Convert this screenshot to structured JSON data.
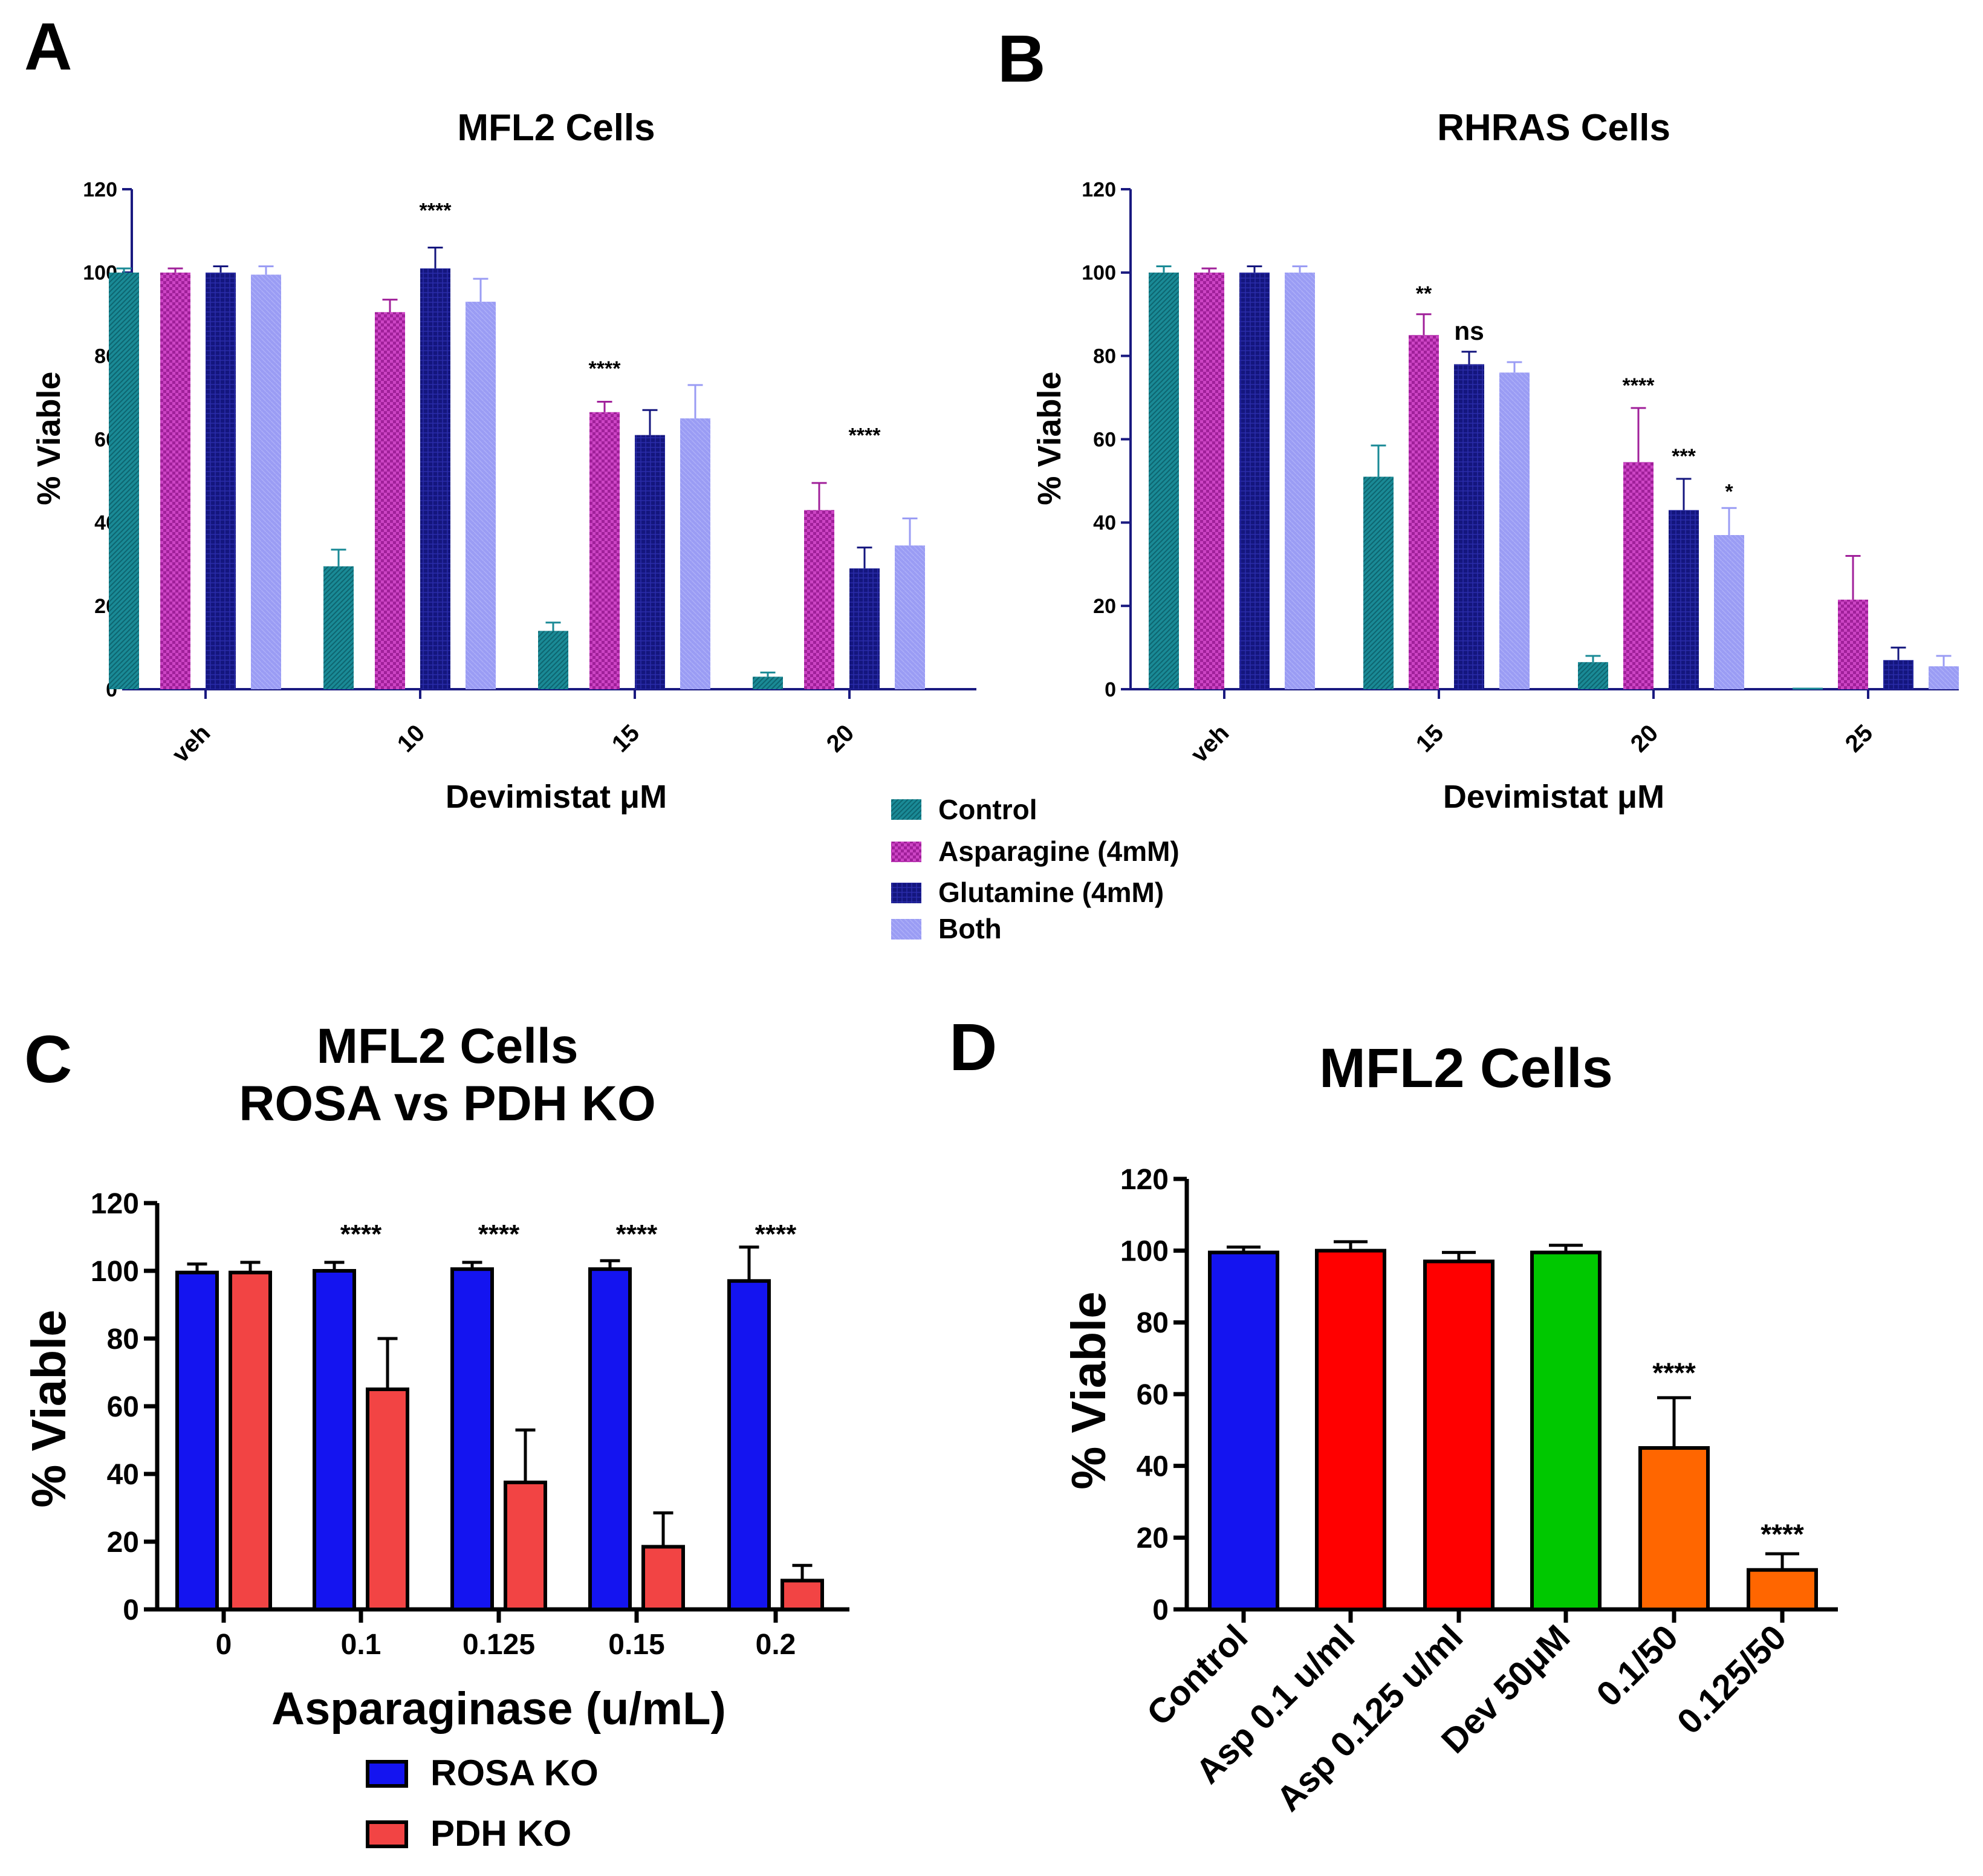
{
  "figure": {
    "panel_letters": [
      "A",
      "B",
      "C",
      "D"
    ],
    "legend_ab": [
      {
        "label": "Control",
        "color": "#1a8a96",
        "pattern": "hatch-teal"
      },
      {
        "label": "Asparagine (4mM)",
        "color": "#a0209a",
        "pattern": "check-magenta"
      },
      {
        "label": "Glutamine (4mM)",
        "color": "#14167e",
        "pattern": "grid-navy"
      },
      {
        "label": "Both",
        "color": "#9a9cf4",
        "pattern": "solid-lavender"
      }
    ],
    "legend_c": [
      {
        "label": "ROSA KO",
        "color": "#1414f0"
      },
      {
        "label": "PDH KO",
        "color": "#f24444"
      }
    ]
  },
  "chart_data": [
    {
      "panel": "A",
      "type": "bar",
      "title": "MFL2 Cells",
      "xlabel": "Devimistat μM",
      "ylabel": "% Viable",
      "ylim": [
        0,
        120
      ],
      "yticks": [
        "0",
        "20",
        "40",
        "60",
        "80",
        "100",
        "120"
      ],
      "categories": [
        "veh",
        "10",
        "15",
        "20"
      ],
      "series": [
        {
          "name": "Control",
          "values": [
            100,
            29.5,
            14,
            3
          ],
          "errors": [
            1,
            4,
            2,
            1
          ]
        },
        {
          "name": "Asparagine (4mM)",
          "values": [
            100,
            90.5,
            66.5,
            43
          ],
          "errors": [
            1,
            3,
            2.5,
            6.5
          ]
        },
        {
          "name": "Glutamine (4mM)",
          "values": [
            100,
            101,
            61,
            29
          ],
          "errors": [
            1.5,
            5,
            6,
            5
          ]
        },
        {
          "name": "Both",
          "values": [
            99.5,
            93,
            65,
            34.5
          ],
          "errors": [
            2,
            5.5,
            8,
            6.5
          ]
        }
      ],
      "annotations": [
        {
          "category": "10",
          "series": "Glutamine (4mM)",
          "text": "****",
          "y": 115
        },
        {
          "category": "15",
          "series": "Asparagine (4mM)",
          "text": "****",
          "y": 77
        },
        {
          "category": "20",
          "series": "Glutamine (4mM)",
          "text": "****",
          "y": 61
        }
      ]
    },
    {
      "panel": "B",
      "type": "bar",
      "title": "RHRAS Cells",
      "xlabel": "Devimistat μM",
      "ylabel": "% Viable",
      "ylim": [
        0,
        120
      ],
      "yticks": [
        "0",
        "20",
        "40",
        "60",
        "80",
        "100",
        "120"
      ],
      "categories": [
        "veh",
        "15",
        "20",
        "25"
      ],
      "series": [
        {
          "name": "Control",
          "values": [
            100,
            51,
            6.5,
            0
          ],
          "errors": [
            1.5,
            7.5,
            1.5,
            0
          ]
        },
        {
          "name": "Asparagine (4mM)",
          "values": [
            100,
            85,
            54.5,
            21.5
          ],
          "errors": [
            1,
            5,
            13,
            10.5
          ]
        },
        {
          "name": "Glutamine (4mM)",
          "values": [
            100,
            78,
            43,
            7
          ],
          "errors": [
            1.5,
            3,
            7.5,
            3
          ]
        },
        {
          "name": "Both",
          "values": [
            100,
            76,
            37,
            5.5
          ],
          "errors": [
            1.5,
            2.5,
            6.5,
            2.5
          ]
        }
      ],
      "annotations": [
        {
          "category": "15",
          "series": "Asparagine (4mM)",
          "text": "**",
          "y": 95
        },
        {
          "category": "15",
          "series": "Glutamine (4mM)",
          "text": "ns",
          "y": 86
        },
        {
          "category": "20",
          "series": "Asparagine (4mM)",
          "text": "****",
          "y": 73
        },
        {
          "category": "20",
          "series": "Glutamine (4mM)",
          "text": "***",
          "y": 56
        },
        {
          "category": "20",
          "series": "Both",
          "text": "*",
          "y": 47.5
        }
      ]
    },
    {
      "panel": "C",
      "type": "bar",
      "title": "MFL2 Cells",
      "subtitle": "ROSA vs PDH KO",
      "xlabel": "Asparaginase (u/mL)",
      "ylabel": "% Viable",
      "ylim": [
        0,
        120
      ],
      "yticks": [
        "0",
        "20",
        "40",
        "60",
        "80",
        "100",
        "120"
      ],
      "categories": [
        "0",
        "0.1",
        "0.125",
        "0.15",
        "0.2"
      ],
      "series": [
        {
          "name": "ROSA KO",
          "values": [
            99.5,
            100,
            100.5,
            100.5,
            97
          ],
          "errors": [
            2.5,
            2.5,
            2,
            2.5,
            10
          ]
        },
        {
          "name": "PDH KO",
          "values": [
            99.5,
            65,
            37.5,
            18.5,
            8.5
          ],
          "errors": [
            3,
            15,
            15.5,
            10,
            4.5
          ]
        }
      ],
      "annotations": [
        {
          "category": "0.1",
          "text": "****",
          "y": 111
        },
        {
          "category": "0.125",
          "text": "****",
          "y": 111
        },
        {
          "category": "0.15",
          "text": "****",
          "y": 111
        },
        {
          "category": "0.2",
          "text": "****",
          "y": 111
        }
      ]
    },
    {
      "panel": "D",
      "type": "bar",
      "title": "MFL2 Cells",
      "xlabel": "",
      "ylabel": "% Viable",
      "ylim": [
        0,
        120
      ],
      "yticks": [
        "0",
        "20",
        "40",
        "60",
        "80",
        "100",
        "120"
      ],
      "categories": [
        "Control",
        "Asp 0.1 u/ml",
        "Asp 0.125 u/ml",
        "Dev 50μM",
        "0.1/50",
        "0.125/50"
      ],
      "values": [
        99.5,
        100,
        97,
        99.5,
        45,
        11
      ],
      "errors": [
        1.5,
        2.5,
        2.5,
        2,
        14,
        4.5
      ],
      "colors": [
        "#1414f0",
        "#ff0000",
        "#ff0000",
        "#00c800",
        "#ff6600",
        "#ff6600"
      ],
      "annotations": [
        {
          "category": "0.1/50",
          "text": "****",
          "y": 66
        },
        {
          "category": "0.125/50",
          "text": "****",
          "y": 21
        }
      ]
    }
  ]
}
